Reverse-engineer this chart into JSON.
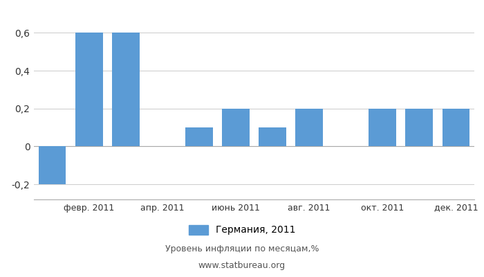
{
  "months": [
    1,
    2,
    3,
    4,
    5,
    6,
    7,
    8,
    9,
    10,
    11,
    12
  ],
  "tick_labels": [
    "февр. 2011",
    "апр. 2011",
    "июнь 2011",
    "авг. 2011",
    "окт. 2011",
    "дек. 2011"
  ],
  "tick_positions": [
    2,
    4,
    6,
    8,
    10,
    12
  ],
  "values": [
    -0.2,
    0.6,
    0.6,
    0.0,
    0.1,
    0.2,
    0.1,
    0.2,
    0.0,
    0.2,
    0.2,
    0.2
  ],
  "bar_color": "#5b9bd5",
  "ylim": [
    -0.28,
    0.7
  ],
  "yticks": [
    -0.2,
    0.0,
    0.2,
    0.4,
    0.6
  ],
  "ytick_labels": [
    "-0,2",
    "0",
    "0,2",
    "0,4",
    "0,6"
  ],
  "legend_label": "Германия, 2011",
  "footer_line1": "Уровень инфляции по месяцам,%",
  "footer_line2": "www.statbureau.org",
  "background_color": "#ffffff",
  "grid_color": "#d0d0d0"
}
